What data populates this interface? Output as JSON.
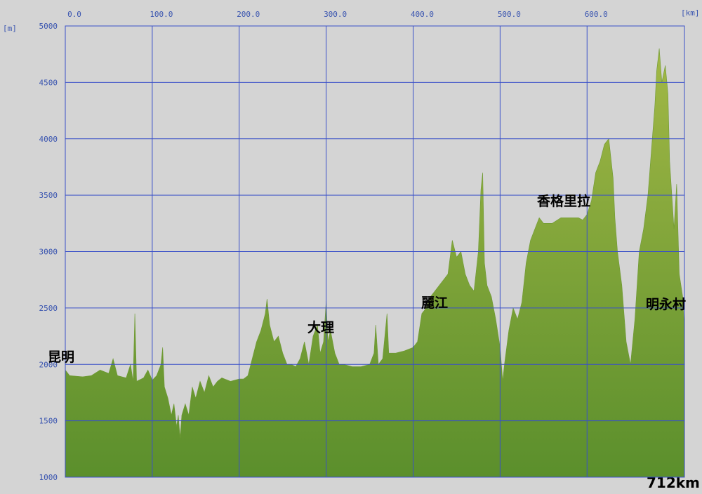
{
  "chart_data": {
    "type": "area",
    "x_unit": "[km]",
    "y_unit": "[m]",
    "x": [
      0,
      5,
      20,
      30,
      40,
      50,
      55,
      60,
      70,
      75,
      78,
      80,
      82,
      90,
      95,
      100,
      105,
      110,
      112,
      114,
      118,
      122,
      125,
      128,
      130,
      132,
      134,
      138,
      142,
      146,
      150,
      155,
      160,
      165,
      170,
      175,
      180,
      190,
      200,
      205,
      210,
      215,
      220,
      225,
      230,
      232,
      235,
      240,
      245,
      250,
      255,
      260,
      265,
      270,
      275,
      280,
      285,
      290,
      293,
      297,
      300,
      302,
      305,
      310,
      315,
      320,
      330,
      340,
      350,
      355,
      357,
      360,
      365,
      370,
      372,
      380,
      390,
      400,
      405,
      410,
      415,
      420,
      425,
      430,
      440,
      445,
      450,
      455,
      460,
      465,
      470,
      475,
      478,
      480,
      482,
      485,
      490,
      495,
      500,
      503,
      505,
      510,
      515,
      520,
      525,
      530,
      535,
      540,
      545,
      550,
      560,
      570,
      580,
      590,
      595,
      600,
      605,
      610,
      615,
      620,
      625,
      630,
      632,
      635,
      640,
      645,
      650,
      655,
      660,
      665,
      670,
      675,
      678,
      680,
      683,
      686,
      690,
      693,
      695,
      700,
      703,
      706,
      710,
      712
    ],
    "values": [
      1950,
      1900,
      1890,
      1900,
      1950,
      1920,
      2050,
      1900,
      1880,
      2000,
      1850,
      2450,
      1850,
      1880,
      1950,
      1860,
      1900,
      2000,
      2150,
      1800,
      1700,
      1550,
      1650,
      1450,
      1550,
      1350,
      1550,
      1650,
      1550,
      1800,
      1700,
      1850,
      1750,
      1900,
      1800,
      1850,
      1880,
      1850,
      1870,
      1870,
      1900,
      2050,
      2200,
      2300,
      2450,
      2580,
      2350,
      2200,
      2250,
      2100,
      2000,
      2000,
      1980,
      2050,
      2200,
      2000,
      2250,
      2350,
      2100,
      2200,
      2560,
      2200,
      2300,
      2100,
      2000,
      2000,
      1980,
      1980,
      2000,
      2100,
      2350,
      2000,
      2050,
      2450,
      2100,
      2100,
      2120,
      2150,
      2200,
      2450,
      2500,
      2600,
      2650,
      2700,
      2800,
      3100,
      2950,
      3000,
      2800,
      2700,
      2650,
      3000,
      3550,
      3700,
      2900,
      2700,
      2600,
      2400,
      2150,
      1850,
      2000,
      2300,
      2500,
      2400,
      2550,
      2900,
      3100,
      3200,
      3300,
      3250,
      3250,
      3300,
      3300,
      3300,
      3280,
      3330,
      3450,
      3700,
      3800,
      3950,
      4000,
      3650,
      3300,
      3000,
      2700,
      2200,
      2000,
      2400,
      3000,
      3200,
      3500,
      4000,
      4300,
      4600,
      4800,
      4500,
      4650,
      4400,
      3800,
      3200,
      3600,
      2800,
      2600,
      2300
    ],
    "color_top": "#a2b846",
    "color_bottom": "#5b8f2c",
    "xlim": [
      0,
      712
    ],
    "ylim": [
      1000,
      5000
    ],
    "xticks": [
      {
        "value": 0,
        "label": "0.0"
      },
      {
        "value": 100,
        "label": "100.0"
      },
      {
        "value": 200,
        "label": "200.0"
      },
      {
        "value": 300,
        "label": "300.0"
      },
      {
        "value": 400,
        "label": "400.0"
      },
      {
        "value": 500,
        "label": "500.0"
      },
      {
        "value": 600,
        "label": "600.0"
      }
    ],
    "yticks": [
      1000,
      1500,
      2000,
      2500,
      3000,
      3500,
      4000,
      4500,
      5000
    ],
    "grid": true,
    "annotations": [
      {
        "text": "昆明",
        "x": 0
      },
      {
        "text": "大理",
        "x": 300
      },
      {
        "text": "麗江",
        "x": 430
      },
      {
        "text": "香格里拉",
        "x": 600
      },
      {
        "text": "明永村",
        "x": 700
      }
    ],
    "total_label": "712km"
  }
}
